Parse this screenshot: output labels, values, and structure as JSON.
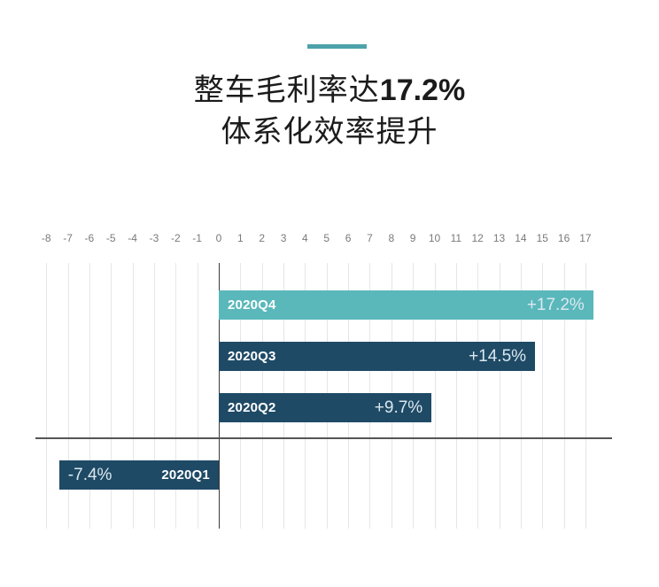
{
  "header": {
    "accent_color": "#4da2ab",
    "title_line1_prefix": "整车毛利率达",
    "title_line1_highlight": "17.2%",
    "title_line2": "体系化效率提升"
  },
  "colors": {
    "highlight_bar": "#5ab8bb",
    "bar": "#1f4a66",
    "gridline": "#e4e6e8",
    "axis": "#555555"
  },
  "axis": {
    "ticks": [
      "-8",
      "-7",
      "-6",
      "-5",
      "-4",
      "-3",
      "-2",
      "-1",
      "0",
      "1",
      "2",
      "3",
      "4",
      "5",
      "6",
      "7",
      "8",
      "9",
      "10",
      "11",
      "12",
      "13",
      "14",
      "15",
      "16",
      "17"
    ]
  },
  "bars": [
    {
      "category": "2020Q4",
      "label": "+17.2%"
    },
    {
      "category": "2020Q3",
      "label": "+14.5%"
    },
    {
      "category": "2020Q2",
      "label": "+9.7%"
    },
    {
      "category": "2020Q1",
      "label": "-7.4%"
    }
  ],
  "chart_data": {
    "type": "bar",
    "orientation": "horizontal",
    "title": "整车毛利率达17.2% 体系化效率提升",
    "categories": [
      "2020Q4",
      "2020Q3",
      "2020Q2",
      "2020Q1"
    ],
    "values": [
      17.2,
      14.5,
      9.7,
      -7.4
    ],
    "data_labels": [
      "+17.2%",
      "+14.5%",
      "+9.7%",
      "-7.4%"
    ],
    "xlabel": "",
    "ylabel": "",
    "xlim": [
      -8,
      17
    ],
    "x_ticks": [
      -8,
      -7,
      -6,
      -5,
      -4,
      -3,
      -2,
      -1,
      0,
      1,
      2,
      3,
      4,
      5,
      6,
      7,
      8,
      9,
      10,
      11,
      12,
      13,
      14,
      15,
      16,
      17
    ],
    "x_tick_position": "top",
    "grid": true,
    "legend": null,
    "series_colors": {
      "2020Q4": "#5ab8bb",
      "2020Q3": "#1f4a66",
      "2020Q2": "#1f4a66",
      "2020Q1": "#1f4a66"
    }
  }
}
